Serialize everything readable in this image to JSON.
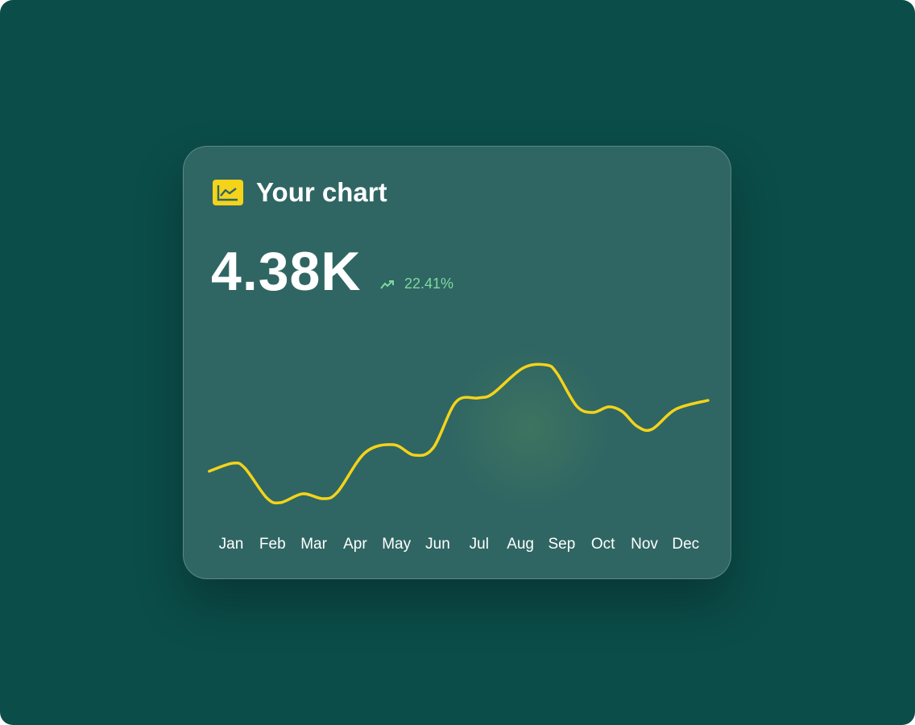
{
  "card": {
    "title": "Your chart",
    "icon": "line-chart-icon",
    "value": "4.38K",
    "change": "22.41%",
    "change_icon": "trending-up-icon",
    "change_color": "#7fd7a0",
    "accent_color": "#f5d31a"
  },
  "chart_data": {
    "type": "line",
    "categories": [
      "Jan",
      "Feb",
      "Mar",
      "Apr",
      "May",
      "Jun",
      "Jul",
      "Aug",
      "Sep",
      "Oct",
      "Nov",
      "Dec"
    ],
    "title": "",
    "xlabel": "",
    "ylabel": "",
    "grid": false,
    "y_axis_shown": false,
    "ylim": [
      0,
      100
    ],
    "line_color": "#f5d31a",
    "series": [
      {
        "x": [
          0.47,
          1.04,
          1.33,
          1.86,
          2.19,
          2.73,
          3.22,
          3.57,
          4.24,
          4.92,
          5.43,
          5.89,
          6.44,
          6.98,
          7.32,
          8.06,
          8.62,
          8.88,
          9.36,
          9.75,
          10.14,
          10.47,
          10.82,
          11.18,
          11.76,
          12.54
        ],
        "values": [
          28,
          33,
          30,
          11.5,
          8.5,
          14,
          11,
          15,
          39.5,
          44.5,
          38,
          42.5,
          71,
          73.5,
          76,
          92,
          94,
          89,
          68.5,
          64.5,
          68,
          65,
          56,
          54,
          66.5,
          72
        ]
      }
    ]
  }
}
